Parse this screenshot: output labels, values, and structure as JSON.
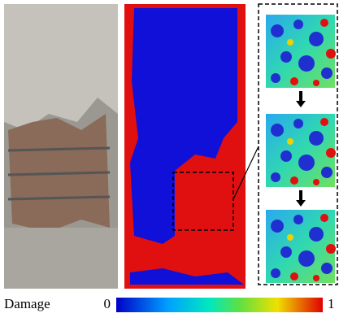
{
  "colorbar": {
    "label": "Damage",
    "min_label": "0",
    "max_label": "1"
  }
}
